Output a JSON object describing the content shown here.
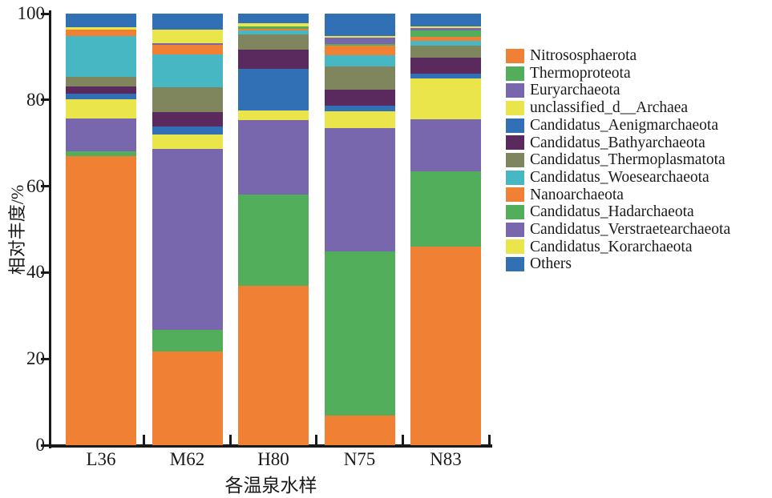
{
  "chart_data": {
    "type": "bar",
    "stacked": true,
    "normalized_to_percent": true,
    "title": "",
    "xlabel": "各温泉水样",
    "ylabel": "相对丰度/%",
    "ylim": [
      0,
      100
    ],
    "yticks": [
      0,
      20,
      40,
      60,
      80,
      100
    ],
    "grid": false,
    "legend_position": "right",
    "categories": [
      "L36",
      "M62",
      "H80",
      "N75",
      "N83"
    ],
    "series": [
      {
        "name": "Nitrososphaerota",
        "color": "#F08033",
        "values": [
          67.0,
          21.8,
          36.9,
          6.8,
          46.0
        ]
      },
      {
        "name": "Thermoproteota",
        "color": "#53AE5B",
        "values": [
          1.1,
          5.0,
          21.0,
          38.0,
          17.4
        ]
      },
      {
        "name": "Euryarchaeota",
        "color": "#7967AE",
        "values": [
          7.8,
          42.0,
          17.2,
          28.5,
          12.2
        ]
      },
      {
        "name": "unclassified_d__Archaea",
        "color": "#E9E54A",
        "values": [
          4.3,
          3.2,
          2.3,
          4.0,
          9.4
        ]
      },
      {
        "name": "Candidatus_Aenigmarchaeota",
        "color": "#3170B5",
        "values": [
          1.4,
          1.9,
          9.6,
          1.2,
          1.1
        ]
      },
      {
        "name": "Candidatus_Bathyarchaeota",
        "color": "#5A2A5E",
        "values": [
          1.6,
          3.4,
          4.5,
          3.7,
          3.7
        ]
      },
      {
        "name": "Candidatus_Thermoplasmatota",
        "color": "#7F855C",
        "values": [
          2.2,
          5.8,
          3.4,
          5.4,
          2.7
        ]
      },
      {
        "name": "Candidatus_Woesearchaeota",
        "color": "#47B7C4",
        "values": [
          9.5,
          7.5,
          0.9,
          2.7,
          1.2
        ]
      },
      {
        "name": "Nanoarchaeota",
        "color": "#F08033",
        "values": [
          1.6,
          2.2,
          0.5,
          2.1,
          0.9
        ]
      },
      {
        "name": "Candidatus_Hadarchaeota",
        "color": "#53AE5B",
        "values": [
          0.0,
          0.0,
          0.55,
          0.4,
          1.6
        ]
      },
      {
        "name": "Candidatus_Verstraetearchaeota",
        "color": "#7967AE",
        "values": [
          0.0,
          0.5,
          0.0,
          1.4,
          0.5
        ]
      },
      {
        "name": "Candidatus_Korarchaeota",
        "color": "#E9E54A",
        "values": [
          0.45,
          3.1,
          0.6,
          0.55,
          0.4
        ]
      },
      {
        "name": "Others",
        "color": "#3170B5",
        "values": [
          3.2,
          3.7,
          2.3,
          5.1,
          2.9
        ]
      }
    ]
  }
}
